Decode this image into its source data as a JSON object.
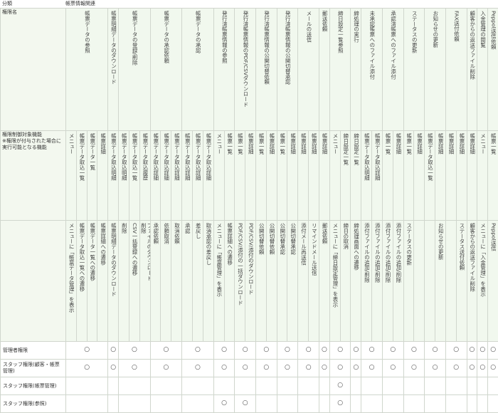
{
  "category_label": "分類",
  "category_value": "帳票情報関連",
  "row_labels": {
    "name": "権限名",
    "controlled": "権限制御対象機能\n※権限が付与された場合に実行可能となる機能"
  },
  "groups": [
    {
      "name": "帳票データの参照",
      "span": 4,
      "funcs": [
        "メニュー",
        "帳票データ取込一覧",
        "帳票データ一覧",
        "帳票詳細"
      ],
      "actions": [
        "メニューに「帳票データ管理」を表示",
        "帳票データ取込一覧への遷移",
        "帳票データ一覧への遷移",
        "帳票詳細への遷移"
      ],
      "perm": [
        "○",
        "○",
        "",
        ""
      ]
    },
    {
      "name": "帳票明細データのダウンロード",
      "span": 1,
      "funcs": [
        "帳票データ取込明細"
      ],
      "actions": [
        "帳票明細データのダウンロード"
      ],
      "perm": [
        "○",
        "○",
        "",
        ""
      ]
    },
    {
      "name": "帳票データの登録/削除",
      "span": 3,
      "funcs": [
        "帳票データ取込明細",
        "帳票データ取込一覧",
        "帳票データ取込履歴"
      ],
      "actions": [
        "削除",
        "CSV一括登録への遷移",
        "ファイルのダウンロード\n削除"
      ],
      "perm": [
        "○",
        "○",
        "",
        ""
      ]
    },
    {
      "name": "帳票データの承認依頼",
      "span": 3,
      "funcs": [
        "帳票データ取込詳細",
        "帳票データ取込詳細",
        "帳票データ取込詳細"
      ],
      "actions": [
        "承認依頼",
        "依頼取消",
        "取消依頼"
      ],
      "perm": [
        "○",
        "○",
        "",
        ""
      ]
    },
    {
      "name": "帳票データの承認",
      "span": 3,
      "funcs": [
        "帳票データ取込詳細",
        "帳票データ取込詳細",
        "帳票データ取込詳細"
      ],
      "actions": [
        "承認",
        "差戻し",
        "取消承認の差戻し"
      ],
      "perm": [
        "○",
        "○",
        "",
        ""
      ]
    },
    {
      "name": "発行済帳票情報の参照",
      "span": 2,
      "funcs": [
        "メニュー",
        "帳票一覧"
      ],
      "actions": [
        "メニューに「帳票管理」を表示",
        "帳票詳細への遷移"
      ],
      "perm": [
        "○",
        "○",
        "",
        "○"
      ]
    },
    {
      "name": "発行済帳票情報のPDF/CSVダウンロード",
      "span": 2,
      "funcs": [
        "帳票一覧",
        "帳票詳細"
      ],
      "actions": [
        "PDF/CSV/添付の一括ダウンロード",
        "PDF/CSV/添付のダウンロード"
      ],
      "perm": [
        "○",
        "○",
        "",
        "○"
      ]
    },
    {
      "name": "発行済帳票情報の公開切替依頼",
      "span": 2,
      "funcs": [
        "帳票一覧",
        "帳票詳細"
      ],
      "actions": [
        "公開切替依頼",
        "公開切替依頼"
      ],
      "perm": [
        "○",
        "○",
        "",
        ""
      ]
    },
    {
      "name": "発行済帳票情報の公開切替承認",
      "span": 2,
      "funcs": [
        "帳票一覧",
        "帳票詳細"
      ],
      "actions": [
        "公開切替承認",
        "公開切替承認"
      ],
      "perm": [
        "○",
        "○",
        "",
        ""
      ]
    },
    {
      "name": "メールの送信",
      "span": 2,
      "funcs": [
        "帳票詳細",
        "帳票詳細"
      ],
      "actions": [
        "添付メール再送信",
        "リマインドメール送信"
      ],
      "perm": [
        "○",
        "○",
        "",
        ""
      ]
    },
    {
      "name": "郵送依頼",
      "span": 1,
      "funcs": [
        "帳票詳細"
      ],
      "actions": [
        "郵送依頼"
      ],
      "perm": [
        "○",
        "○",
        "",
        ""
      ]
    },
    {
      "name": "締日設定一覧参照",
      "span": 2,
      "funcs": [
        "メニュー",
        "締日設定一覧"
      ],
      "actions": [
        "メニューに「締日設定管理」を表示",
        "締日の取消"
      ],
      "perm": [
        "○",
        "○",
        "○",
        "○"
      ]
    },
    {
      "name": "締処理の実行",
      "span": 1,
      "funcs": [
        "締日設定一覧"
      ],
      "actions": [
        "締処理画面への遷移"
      ],
      "perm": [
        "○",
        "○",
        "",
        ""
      ]
    },
    {
      "name": "未承認帳票へのファイル添付",
      "span": 2,
      "funcs": [
        "帳票データ取込明細",
        "帳票データ取込詳細"
      ],
      "actions": [
        "添付ファイルの追加/削除",
        "添付ファイルの追加/削除"
      ],
      "perm": [
        "○",
        "○",
        "",
        ""
      ]
    },
    {
      "name": "承認済帳票へのファイル添付",
      "span": 2,
      "funcs": [
        "帳票一覧",
        "帳票詳細"
      ],
      "actions": [
        "添付ファイルの追加/削除",
        "添付ファイルの追加/削除"
      ],
      "perm": [
        "○",
        "○",
        "",
        ""
      ]
    },
    {
      "name": "ステータスの更新",
      "span": 2,
      "funcs": [
        "帳票一覧",
        "帳票詳細"
      ],
      "actions": [
        "ステータスの更新",
        ""
      ],
      "perm": [
        "○",
        "○",
        "",
        ""
      ]
    },
    {
      "name": "お知らせの更新",
      "span": 2,
      "funcs": [
        "帳票データ取込一覧",
        "帳票詳細"
      ],
      "actions": [
        "",
        "お知らせの更新"
      ],
      "perm": [
        "○",
        "○",
        "",
        ""
      ]
    },
    {
      "name": "FAX送付依頼",
      "span": 2,
      "funcs": [
        "帳票詳細",
        "帳票詳細"
      ],
      "actions": [
        "",
        "ステータス送付依頼"
      ],
      "perm": [
        "○",
        "○",
        "",
        ""
      ]
    },
    {
      "name": "顧客からの返送ファイル削除",
      "span": 1,
      "funcs": [
        "帳票詳細"
      ],
      "actions": [
        "顧客からの返送ファイル削除"
      ],
      "perm": [
        "○",
        "○",
        "",
        ""
      ]
    },
    {
      "name": "入金管理の閲覧",
      "span": 1,
      "funcs": [
        "メニュー"
      ],
      "actions": [
        "メニューに「入金管理」を表示"
      ],
      "perm": [
        "○",
        "○",
        "",
        ""
      ]
    },
    {
      "name": "Peppol送信依頼",
      "span": 1,
      "funcs": [
        "帳票一覧"
      ],
      "actions": [
        "Peppol送信"
      ],
      "perm": [
        "○",
        "○",
        "",
        ""
      ]
    }
  ],
  "permission_rows": [
    {
      "label": "管理者権限"
    },
    {
      "label": "スタッフ権限(顧客・帳票管理)"
    },
    {
      "label": "スタッフ権限(帳票管理)"
    },
    {
      "label": "スタッフ権限(参照)"
    }
  ]
}
